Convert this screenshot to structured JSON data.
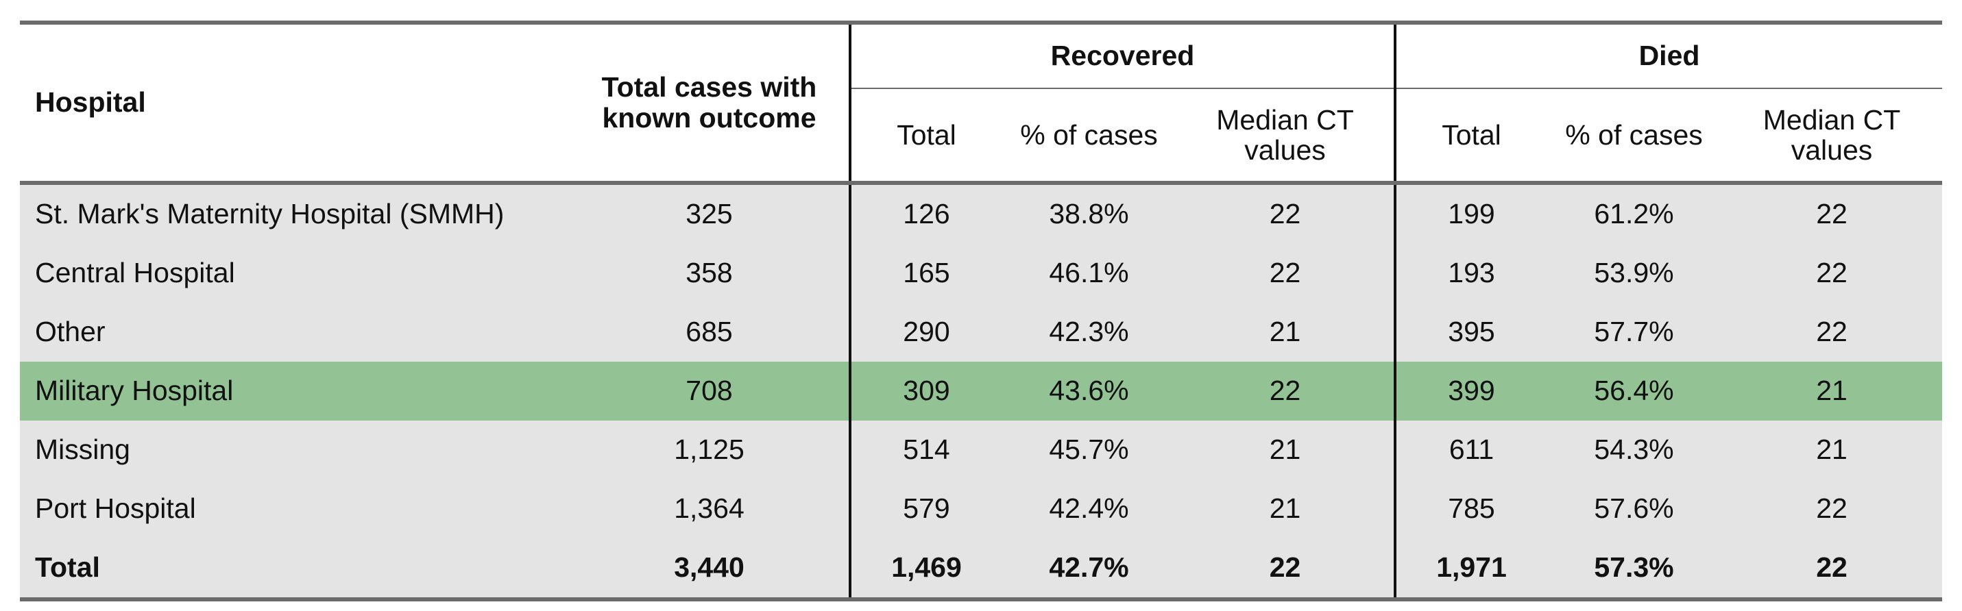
{
  "headers": {
    "hospital": "Hospital",
    "total_cases": "Total cases with known outcome",
    "recovered": "Recovered",
    "died": "Died",
    "sub_total": "Total",
    "sub_pct": "% of cases",
    "sub_median": "Median CT values"
  },
  "rows": [
    {
      "hospital": "St. Mark's Maternity Hospital (SMMH)",
      "total": "325",
      "rec_total": "126",
      "rec_pct": "38.8%",
      "rec_median": "22",
      "died_total": "199",
      "died_pct": "61.2%",
      "died_median": "22"
    },
    {
      "hospital": "Central Hospital",
      "total": "358",
      "rec_total": "165",
      "rec_pct": "46.1%",
      "rec_median": "22",
      "died_total": "193",
      "died_pct": "53.9%",
      "died_median": "22"
    },
    {
      "hospital": "Other",
      "total": "685",
      "rec_total": "290",
      "rec_pct": "42.3%",
      "rec_median": "21",
      "died_total": "395",
      "died_pct": "57.7%",
      "died_median": "22"
    },
    {
      "hospital": "Military Hospital",
      "total": "708",
      "rec_total": "309",
      "rec_pct": "43.6%",
      "rec_median": "22",
      "died_total": "399",
      "died_pct": "56.4%",
      "died_median": "21"
    },
    {
      "hospital": "Missing",
      "total": "1,125",
      "rec_total": "514",
      "rec_pct": "45.7%",
      "rec_median": "21",
      "died_total": "611",
      "died_pct": "54.3%",
      "died_median": "21"
    },
    {
      "hospital": "Port Hospital",
      "total": "1,364",
      "rec_total": "579",
      "rec_pct": "42.4%",
      "rec_median": "21",
      "died_total": "785",
      "died_pct": "57.6%",
      "died_median": "22"
    },
    {
      "hospital": "Total",
      "total": "3,440",
      "rec_total": "1,469",
      "rec_pct": "42.7%",
      "rec_median": "22",
      "died_total": "1,971",
      "died_pct": "57.3%",
      "died_median": "22"
    }
  ],
  "colors": {
    "body_row_bg": "#e4e4e4",
    "highlight_row_bg": "#93c394",
    "rule": "#6b6b6b"
  }
}
